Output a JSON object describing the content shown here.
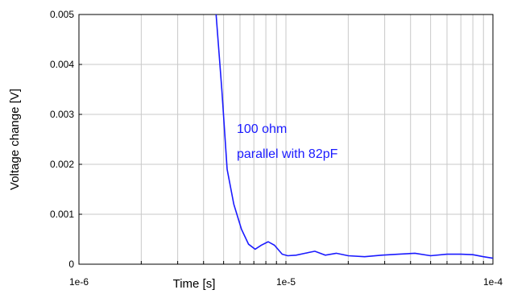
{
  "chart_data": {
    "type": "line",
    "title": "",
    "xlabel": "Time [s]",
    "ylabel": "Voltage change [V]",
    "x_scale": "log",
    "xlim": [
      1e-06,
      0.0001
    ],
    "ylim": [
      0,
      0.005
    ],
    "grid": true,
    "x_ticks": [
      "1e-6",
      "1e-5",
      "1e-4"
    ],
    "y_ticks": [
      "0",
      "0.001",
      "0.002",
      "0.003",
      "0.004",
      "0.005"
    ],
    "annotation": [
      "100 ohm",
      "parallel with 82pF"
    ],
    "line_color": "#1a1aff",
    "series": [
      {
        "x": [
          4.6e-06,
          4.9e-06,
          5.2e-06,
          5.6e-06,
          6.1e-06,
          6.6e-06,
          7.1e-06,
          7.6e-06,
          8.2e-06,
          8.8e-06,
          9.6e-06,
          1.02e-05,
          1.12e-05,
          1.24e-05,
          1.38e-05,
          1.55e-05,
          1.75e-05,
          2e-05,
          2.4e-05,
          2.9e-05,
          3.5e-05,
          4.2e-05,
          5e-05,
          6e-05,
          7e-05,
          8e-05,
          9e-05,
          0.0001
        ],
        "y": [
          0.005,
          0.0035,
          0.0019,
          0.0012,
          0.0007,
          0.0004,
          0.0003,
          0.00038,
          0.00045,
          0.00038,
          0.0002,
          0.00017,
          0.00018,
          0.00022,
          0.00026,
          0.00018,
          0.00022,
          0.00017,
          0.00015,
          0.00018,
          0.0002,
          0.00022,
          0.00017,
          0.0002,
          0.0002,
          0.00019,
          0.00015,
          0.00012
        ]
      }
    ]
  }
}
